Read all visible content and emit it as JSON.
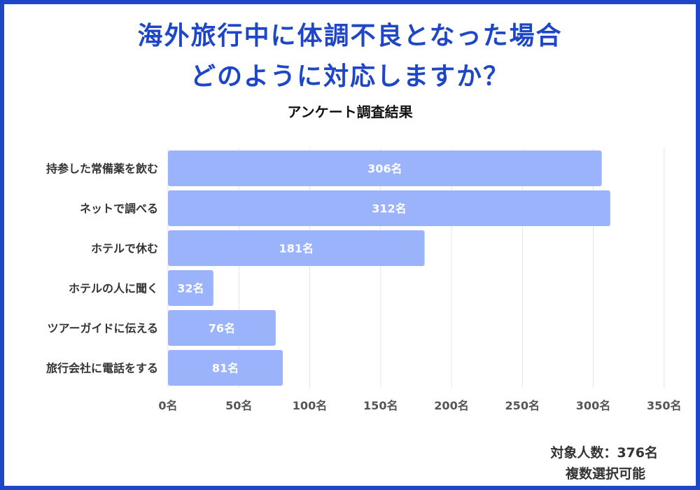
{
  "colors": {
    "frame": "#1d46c8",
    "title": "#1d46c8",
    "bar": "#9bb3fb",
    "grid": "#e3e3e3"
  },
  "header": {
    "title_line1": "海外旅行中に体調不良となった場合",
    "title_line2": "どのように対応しますか？",
    "subtitle": "アンケート調査結果"
  },
  "footer": {
    "respondents": "対象人数：376名",
    "note": "複数選択可能"
  },
  "chart_data": {
    "type": "bar",
    "orientation": "horizontal",
    "title": "海外旅行中に体調不良となった場合 どのように対応しますか？",
    "subtitle": "アンケート調査結果",
    "categories": [
      "持参した常備薬を飲む",
      "ネットで調べる",
      "ホテルで休む",
      "ホテルの人に聞く",
      "ツアーガイドに伝える",
      "旅行会社に電話をする"
    ],
    "values": [
      306,
      312,
      181,
      32,
      76,
      81
    ],
    "data_labels": [
      "306名",
      "312名",
      "181名",
      "32名",
      "76名",
      "81名"
    ],
    "xlim": [
      0,
      350
    ],
    "ticks": [
      0,
      50,
      100,
      150,
      200,
      250,
      300,
      350
    ],
    "tick_labels": [
      "0名",
      "50名",
      "100名",
      "150名",
      "200名",
      "250名",
      "300名",
      "350名"
    ],
    "unit": "名",
    "grid": true
  }
}
